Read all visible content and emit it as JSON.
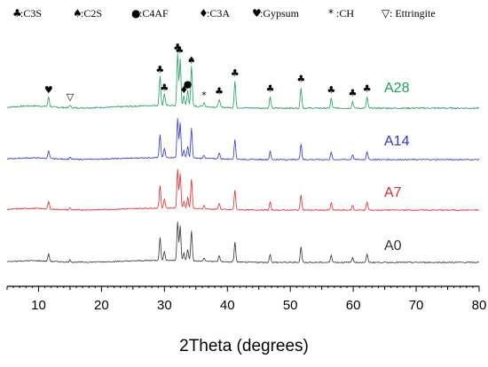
{
  "chart_data": {
    "type": "line",
    "title": "",
    "xlabel": "2Theta (degrees)",
    "ylabel": "",
    "xlim": [
      5,
      80
    ],
    "xticks": [
      10,
      20,
      30,
      40,
      50,
      60,
      70,
      80
    ],
    "legend_placement": "top",
    "legend": [
      {
        "symbol": "♣",
        "text": ":C3S"
      },
      {
        "symbol": "♠",
        "text": ":C2S"
      },
      {
        "symbol": "●",
        "text": ":C4AF"
      },
      {
        "symbol": "♦",
        "text": ":C3A"
      },
      {
        "symbol": "♥",
        "text": ":Gypsum"
      },
      {
        "symbol": "*",
        "text": ":CH"
      },
      {
        "symbol": "▽",
        "text": ": Ettringite"
      }
    ],
    "peak_annotations": [
      {
        "symbol": "♥",
        "x": 11.6
      },
      {
        "symbol": "▽",
        "x": 15.0
      },
      {
        "symbol": "♣",
        "x": 29.3
      },
      {
        "symbol": "♣",
        "x": 30.0
      },
      {
        "symbol": "♣",
        "x": 32.1
      },
      {
        "symbol": "♣",
        "x": 32.4
      },
      {
        "symbol": "♦",
        "x": 33.1
      },
      {
        "symbol": "●",
        "x": 33.7
      },
      {
        "symbol": "♠",
        "x": 34.3
      },
      {
        "symbol": "*",
        "x": 36.3
      },
      {
        "symbol": "♣",
        "x": 38.7
      },
      {
        "symbol": "♣",
        "x": 41.2
      },
      {
        "symbol": "♣",
        "x": 46.8
      },
      {
        "symbol": "♣",
        "x": 51.7
      },
      {
        "symbol": "♣",
        "x": 56.5
      },
      {
        "symbol": "♣",
        "x": 59.9
      },
      {
        "symbol": "♣",
        "x": 62.2
      }
    ],
    "series": [
      {
        "name": "A28",
        "color": "#1aa35a"
      },
      {
        "name": "A14",
        "color": "#2a35d6"
      },
      {
        "name": "A7",
        "color": "#e0292b"
      },
      {
        "name": "A0",
        "color": "#333333"
      }
    ],
    "peaks": [
      {
        "x": 11.6,
        "h": 0.18
      },
      {
        "x": 15.0,
        "h": 0.05
      },
      {
        "x": 29.3,
        "h": 0.55
      },
      {
        "x": 30.0,
        "h": 0.22
      },
      {
        "x": 32.1,
        "h": 0.95
      },
      {
        "x": 32.5,
        "h": 0.85
      },
      {
        "x": 33.1,
        "h": 0.18
      },
      {
        "x": 33.7,
        "h": 0.28
      },
      {
        "x": 34.3,
        "h": 0.72
      },
      {
        "x": 36.3,
        "h": 0.08
      },
      {
        "x": 38.7,
        "h": 0.15
      },
      {
        "x": 41.2,
        "h": 0.48
      },
      {
        "x": 46.8,
        "h": 0.2
      },
      {
        "x": 51.7,
        "h": 0.38
      },
      {
        "x": 56.5,
        "h": 0.18
      },
      {
        "x": 59.9,
        "h": 0.12
      },
      {
        "x": 62.2,
        "h": 0.2
      }
    ]
  }
}
